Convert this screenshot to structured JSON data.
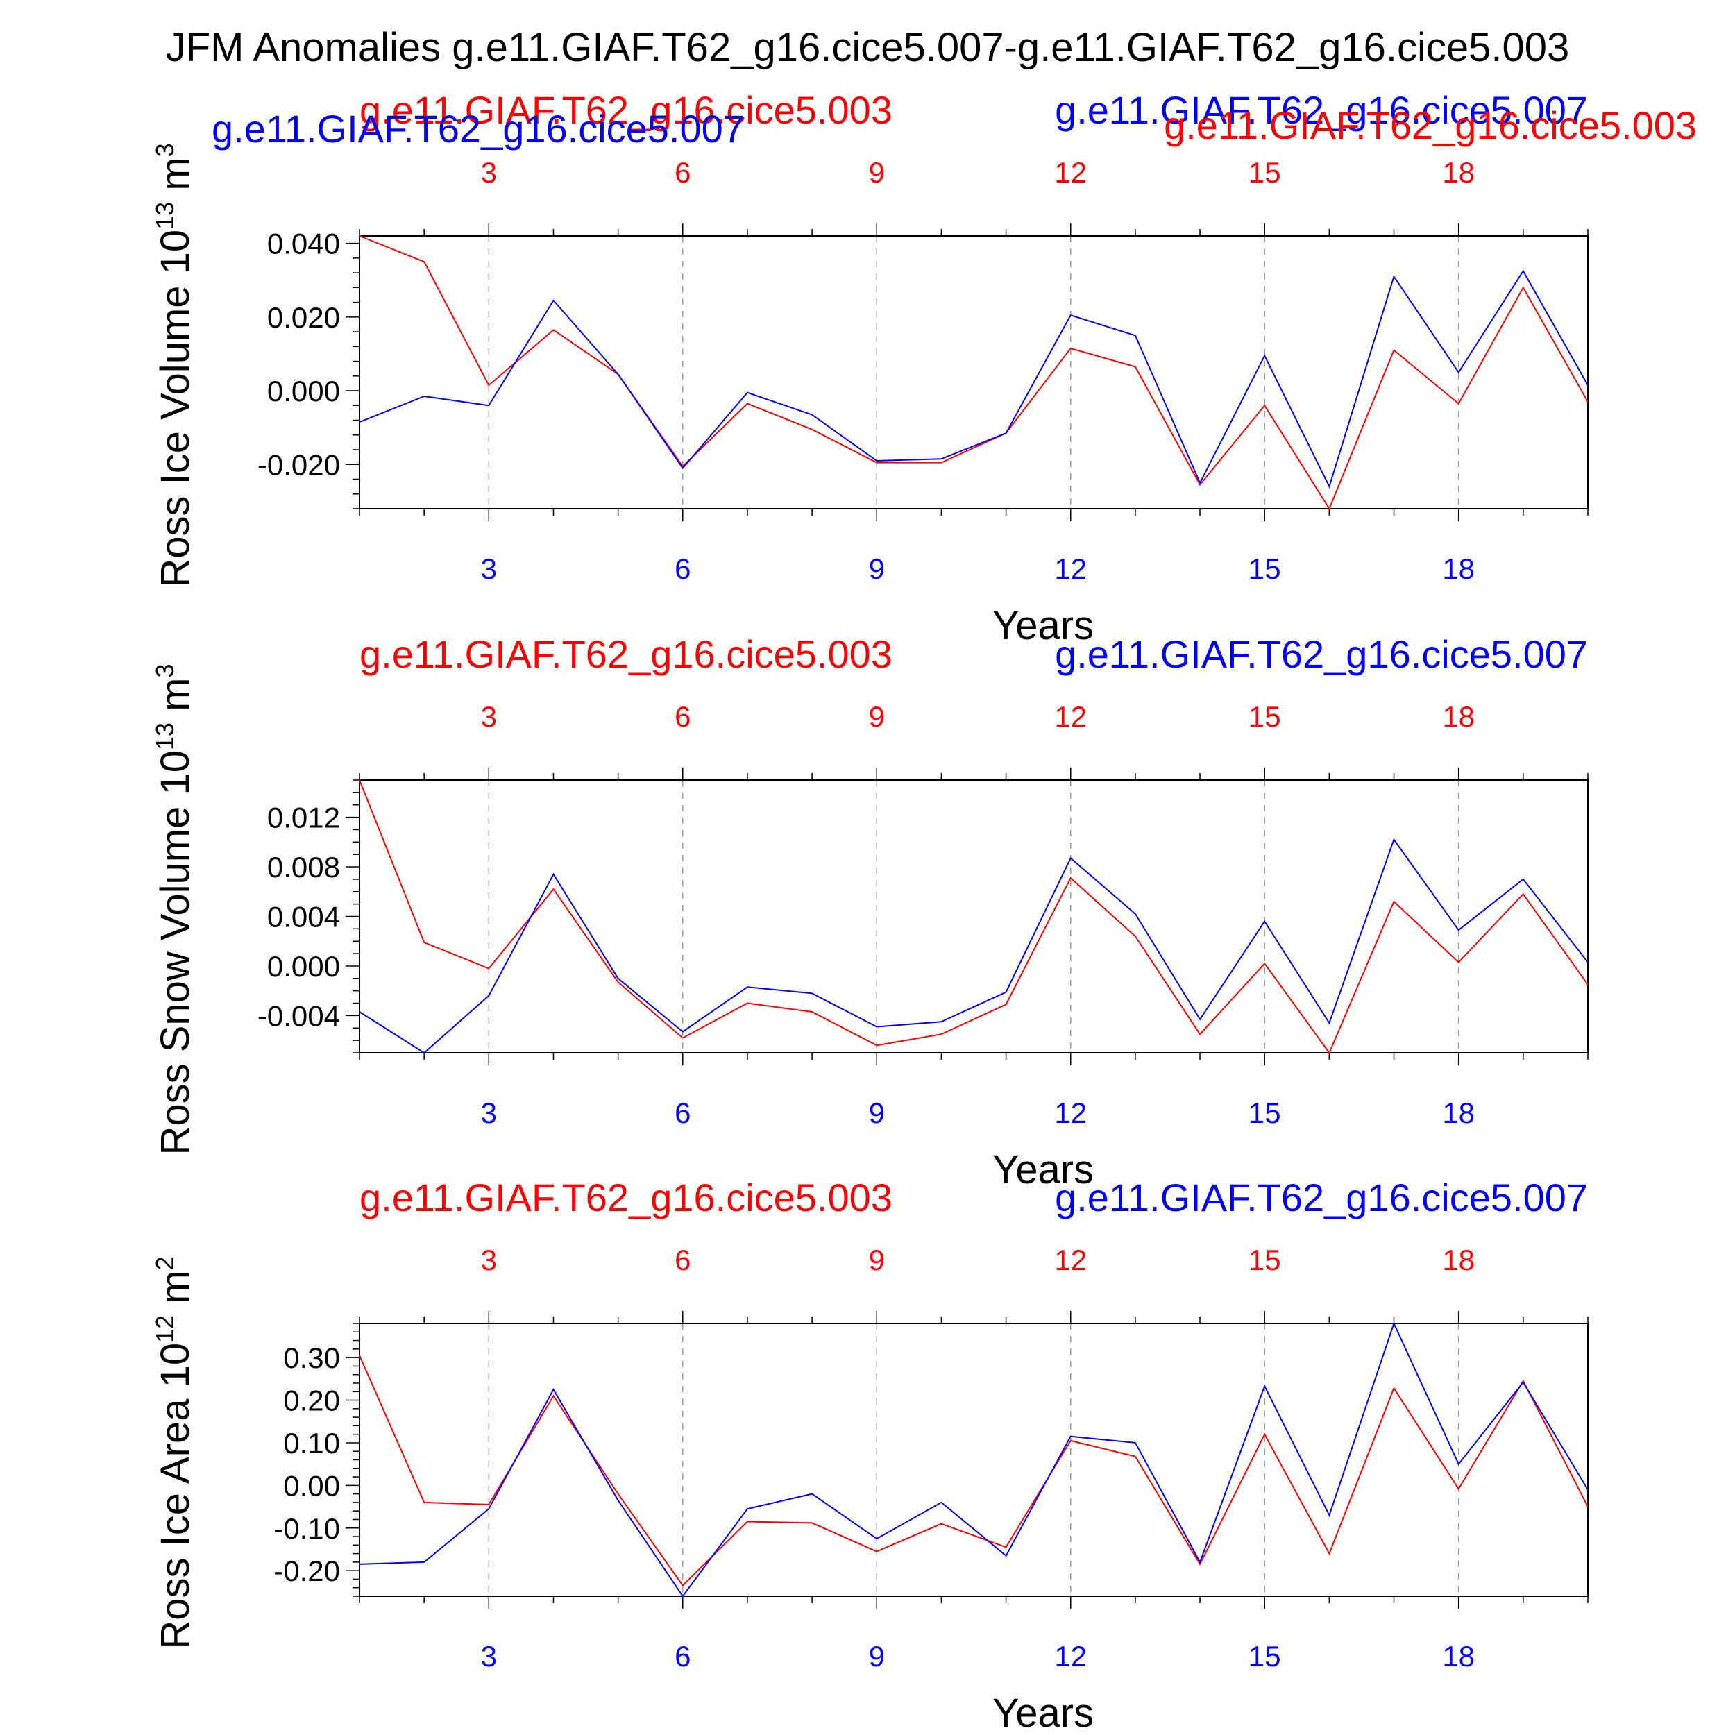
{
  "title": "JFM Anomalies g.e11.GIAF.T62_g16.cice5.007-g.e11.GIAF.T62_g16.cice5.003",
  "colors": {
    "case_003": "#ff0000",
    "case_007": "#0000ff",
    "axis": "#000000",
    "grid": "#999999"
  },
  "chart_data": [
    {
      "type": "line",
      "title": "",
      "xlabel": "Years",
      "ylabel": "Ross Ice Volume 10^13 m^3",
      "ylabel_main": "Ross Ice Volume 10",
      "ylabel_exp": "13",
      "ylabel_unit": " m",
      "ylabel_unit_exp": "3",
      "top_series_label_red": "g.e11.GIAF.T62_g16.cice5.003",
      "top_series_label_blue": "g.e11.GIAF.T62_g16.cice5.007",
      "overlap_label_blue": "g.e11.GIAF.T62_g16.cice5.007",
      "overlap_label_red": "g.e11.GIAF.T62_g16.cice5.003",
      "xlim": [
        1,
        20
      ],
      "ylim": [
        -0.032,
        0.042
      ],
      "x_ticks": [
        3,
        6,
        9,
        12,
        15,
        18
      ],
      "y_ticks": [
        -0.02,
        0.0,
        0.02,
        0.04
      ],
      "y_tick_labels": [
        "-0.020",
        "0.000",
        "0.020",
        "0.040"
      ],
      "y_minor_step": 0.004,
      "grid": "vertical dashed at major x ticks",
      "x": [
        1,
        2,
        3,
        4,
        5,
        6,
        7,
        8,
        9,
        10,
        11,
        12,
        13,
        14,
        15,
        16,
        17,
        18,
        19,
        20
      ],
      "series": [
        {
          "name": "g.e11.GIAF.T62_g16.cice5.003",
          "color": "#ff0000",
          "values": [
            0.042,
            0.035,
            0.0015,
            0.0165,
            0.0045,
            -0.0205,
            -0.0035,
            -0.0105,
            -0.0195,
            -0.0195,
            -0.0115,
            0.0115,
            0.0065,
            -0.0255,
            -0.004,
            -0.032,
            0.011,
            -0.0035,
            0.028,
            -0.003
          ]
        },
        {
          "name": "g.e11.GIAF.T62_g16.cice5.007",
          "color": "#0000ff",
          "values": [
            -0.0085,
            -0.0015,
            -0.004,
            0.0245,
            0.0045,
            -0.021,
            -0.0005,
            -0.0065,
            -0.019,
            -0.0185,
            -0.0115,
            0.0205,
            0.015,
            -0.025,
            0.0095,
            -0.026,
            0.031,
            0.005,
            0.0325,
            0.0015
          ]
        }
      ]
    },
    {
      "type": "line",
      "title": "",
      "xlabel": "Years",
      "ylabel": "Ross Snow Volume 10^13 m^3",
      "ylabel_main": "Ross Snow Volume 10",
      "ylabel_exp": "13",
      "ylabel_unit": " m",
      "ylabel_unit_exp": "3",
      "top_series_label_red": "g.e11.GIAF.T62_g16.cice5.003",
      "top_series_label_blue": "g.e11.GIAF.T62_g16.cice5.007",
      "xlim": [
        1,
        20
      ],
      "ylim": [
        -0.007,
        0.015
      ],
      "x_ticks": [
        3,
        6,
        9,
        12,
        15,
        18
      ],
      "y_ticks": [
        -0.004,
        0.0,
        0.004,
        0.008,
        0.012
      ],
      "y_tick_labels": [
        "-0.004",
        "0.000",
        "0.004",
        "0.008",
        "0.012"
      ],
      "y_minor_step": 0.001,
      "grid": "vertical dashed at major x ticks",
      "x": [
        1,
        2,
        3,
        4,
        5,
        6,
        7,
        8,
        9,
        10,
        11,
        12,
        13,
        14,
        15,
        16,
        17,
        18,
        19,
        20
      ],
      "series": [
        {
          "name": "g.e11.GIAF.T62_g16.cice5.003",
          "color": "#ff0000",
          "values": [
            0.015,
            0.0019,
            -0.0002,
            0.0062,
            -0.0013,
            -0.0058,
            -0.003,
            -0.0037,
            -0.0064,
            -0.0055,
            -0.0031,
            0.0071,
            0.0024,
            -0.0055,
            0.0002,
            -0.007,
            0.0052,
            0.0003,
            0.0058,
            -0.0015
          ]
        },
        {
          "name": "g.e11.GIAF.T62_g16.cice5.007",
          "color": "#0000ff",
          "values": [
            -0.0037,
            -0.007,
            -0.0024,
            0.0074,
            -0.001,
            -0.0053,
            -0.0017,
            -0.0022,
            -0.0049,
            -0.0045,
            -0.0021,
            0.0087,
            0.0042,
            -0.0043,
            0.0036,
            -0.0046,
            0.0102,
            0.0029,
            0.007,
            0.0003
          ]
        }
      ]
    },
    {
      "type": "line",
      "title": "",
      "xlabel": "Years",
      "ylabel": "Ross Ice Area 10^12 m^2",
      "ylabel_main": "Ross Ice Area 10",
      "ylabel_exp": "12",
      "ylabel_unit": " m",
      "ylabel_unit_exp": "2",
      "top_series_label_red": "g.e11.GIAF.T62_g16.cice5.003",
      "top_series_label_blue": "g.e11.GIAF.T62_g16.cice5.007",
      "xlim": [
        1,
        20
      ],
      "ylim": [
        -0.26,
        0.38
      ],
      "x_ticks": [
        3,
        6,
        9,
        12,
        15,
        18
      ],
      "y_ticks": [
        -0.2,
        -0.1,
        0.0,
        0.1,
        0.2,
        0.3
      ],
      "y_tick_labels": [
        "-0.20",
        "-0.10",
        "0.00",
        "0.10",
        "0.20",
        "0.30"
      ],
      "y_minor_step": 0.02,
      "grid": "vertical dashed at major x ticks",
      "x": [
        1,
        2,
        3,
        4,
        5,
        6,
        7,
        8,
        9,
        10,
        11,
        12,
        13,
        14,
        15,
        16,
        17,
        18,
        19,
        20
      ],
      "series": [
        {
          "name": "g.e11.GIAF.T62_g16.cice5.003",
          "color": "#ff0000",
          "values": [
            0.305,
            -0.04,
            -0.045,
            0.21,
            -0.02,
            -0.235,
            -0.085,
            -0.088,
            -0.155,
            -0.09,
            -0.145,
            0.105,
            0.068,
            -0.185,
            0.12,
            -0.16,
            0.228,
            -0.008,
            0.245,
            -0.05
          ]
        },
        {
          "name": "g.e11.GIAF.T62_g16.cice5.007",
          "color": "#0000ff",
          "values": [
            -0.185,
            -0.18,
            -0.055,
            0.225,
            -0.035,
            -0.26,
            -0.055,
            -0.02,
            -0.125,
            -0.04,
            -0.165,
            0.115,
            0.1,
            -0.18,
            0.233,
            -0.07,
            0.38,
            0.05,
            0.242,
            -0.01
          ]
        }
      ]
    }
  ]
}
